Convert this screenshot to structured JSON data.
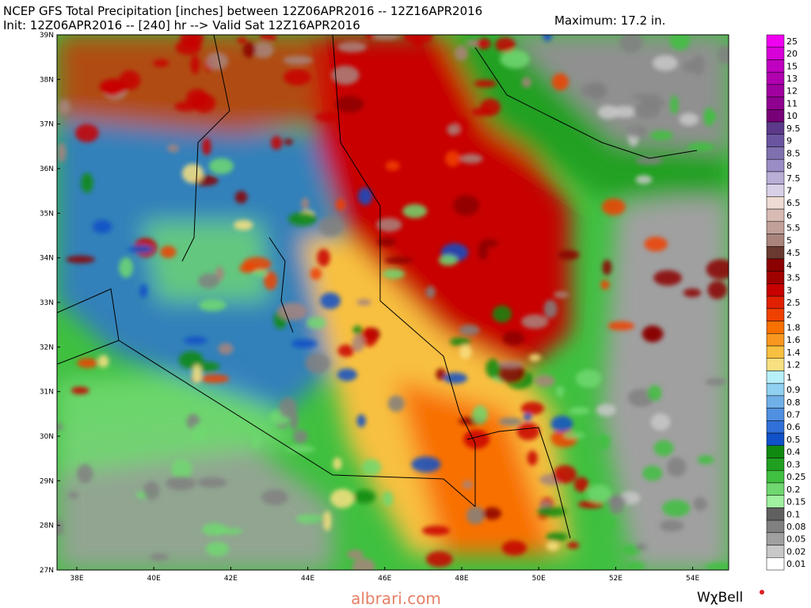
{
  "header": {
    "line1": "NCEP GFS Total Precipitation [inches] between 12Z06APR2016 -- 12Z16APR2016",
    "line2": "Init: 12Z06APR2016 -- [240] hr --> Valid Sat 12Z16APR2016",
    "maximum": "Maximum: 17.2 in."
  },
  "map": {
    "lat_labels": [
      "39N",
      "38N",
      "37N",
      "36N",
      "35N",
      "34N",
      "33N",
      "32N",
      "31N",
      "30N",
      "29N",
      "28N",
      "27N"
    ],
    "lon_labels": [
      "38E",
      "40E",
      "42E",
      "44E",
      "46E",
      "48E",
      "50E",
      "52E",
      "54E"
    ]
  },
  "legend": {
    "items": [
      {
        "label": "25",
        "color": "#f000f0"
      },
      {
        "label": "20",
        "color": "#d800d8"
      },
      {
        "label": "15",
        "color": "#c000c0"
      },
      {
        "label": "13",
        "color": "#b000b0"
      },
      {
        "label": "12",
        "color": "#a000a0"
      },
      {
        "label": "11",
        "color": "#900090"
      },
      {
        "label": "10",
        "color": "#780078"
      },
      {
        "label": "9.5",
        "color": "#5c3a8a"
      },
      {
        "label": "9",
        "color": "#6a55a0"
      },
      {
        "label": "8.5",
        "color": "#8070b0"
      },
      {
        "label": "8",
        "color": "#9a8cc4"
      },
      {
        "label": "7.5",
        "color": "#b8aed6"
      },
      {
        "label": "7",
        "color": "#d8d0e6"
      },
      {
        "label": "6.5",
        "color": "#eedcd4"
      },
      {
        "label": "6",
        "color": "#d8bcb4"
      },
      {
        "label": "5.5",
        "color": "#c0a098"
      },
      {
        "label": "5",
        "color": "#a8847c"
      },
      {
        "label": "4.5",
        "color": "#6a3a30"
      },
      {
        "label": "4",
        "color": "#8b0000"
      },
      {
        "label": "3.5",
        "color": "#a00000"
      },
      {
        "label": "3",
        "color": "#c80000"
      },
      {
        "label": "2.5",
        "color": "#e02000"
      },
      {
        "label": "2",
        "color": "#f04000"
      },
      {
        "label": "1.8",
        "color": "#f87000"
      },
      {
        "label": "1.6",
        "color": "#f89820"
      },
      {
        "label": "1.4",
        "color": "#f8c040"
      },
      {
        "label": "1.2",
        "color": "#f8e080"
      },
      {
        "label": "1",
        "color": "#b8f0f8"
      },
      {
        "label": "0.9",
        "color": "#90d0f0"
      },
      {
        "label": "0.8",
        "color": "#70b0e8"
      },
      {
        "label": "0.7",
        "color": "#5090e0"
      },
      {
        "label": "0.6",
        "color": "#3070d8"
      },
      {
        "label": "0.5",
        "color": "#1050c8"
      },
      {
        "label": "0.4",
        "color": "#108a10"
      },
      {
        "label": "0.3",
        "color": "#20a020"
      },
      {
        "label": "0.25",
        "color": "#40c040"
      },
      {
        "label": "0.2",
        "color": "#70d870"
      },
      {
        "label": "0.15",
        "color": "#a0f0a0"
      },
      {
        "label": "0.1",
        "color": "#606060"
      },
      {
        "label": "0.08",
        "color": "#808080"
      },
      {
        "label": "0.05",
        "color": "#a0a0a0"
      },
      {
        "label": "0.02",
        "color": "#c8c8c8"
      },
      {
        "label": "0.01",
        "color": "#ffffff"
      }
    ]
  },
  "footer": {
    "watermark": "albrari.com",
    "brand": "WχBell"
  }
}
